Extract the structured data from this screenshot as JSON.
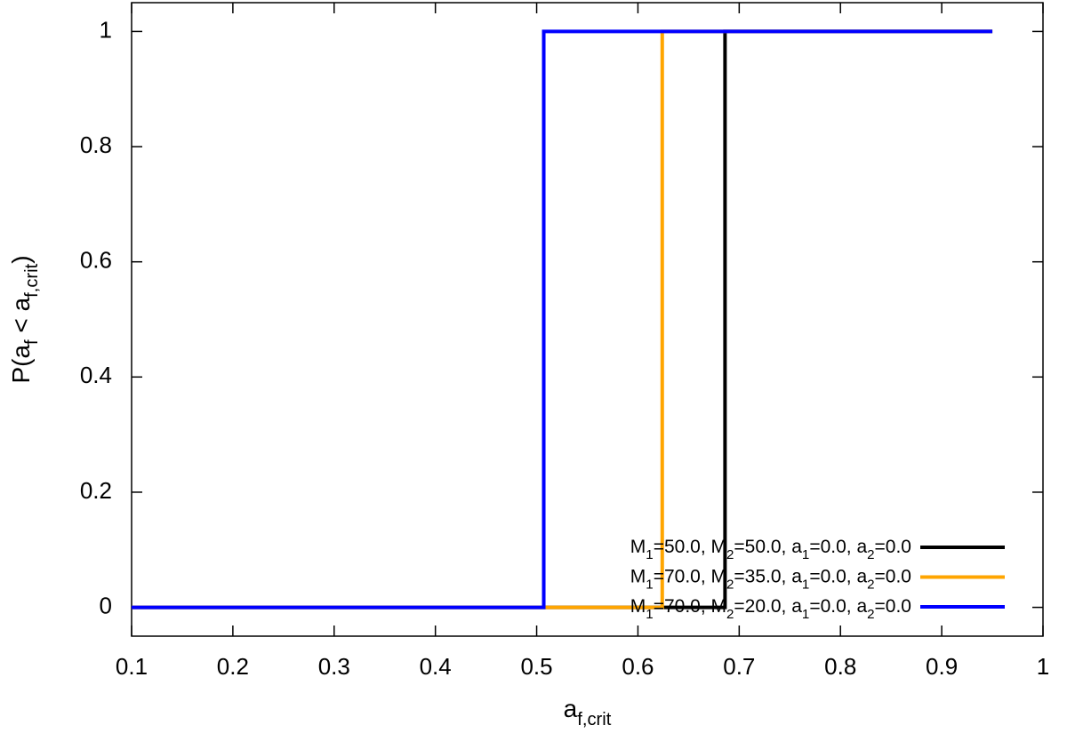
{
  "chart_data": {
    "type": "line",
    "step": true,
    "xlabel": [
      {
        "text": "a"
      },
      {
        "text": "f,crit",
        "sub": true
      }
    ],
    "ylabel": [
      {
        "text": "P(a"
      },
      {
        "text": "f",
        "sub": true
      },
      {
        "text": " < a"
      },
      {
        "text": "f,crit",
        "sub": true
      },
      {
        "text": ")"
      }
    ],
    "xlim": [
      0.1,
      1
    ],
    "ylim": [
      -0.05,
      1.05
    ],
    "xticks": [
      0.1,
      0.2,
      0.3,
      0.4,
      0.5,
      0.6,
      0.7,
      0.8,
      0.9,
      1
    ],
    "yticks": [
      0,
      0.2,
      0.4,
      0.6,
      0.8,
      1
    ],
    "legend": "lower right",
    "series": [
      {
        "name": [
          {
            "text": "M"
          },
          {
            "text": "1",
            "sub": true
          },
          {
            "text": "=50.0, M"
          },
          {
            "text": "2",
            "sub": true
          },
          {
            "text": "=50.0, a"
          },
          {
            "text": "1",
            "sub": true
          },
          {
            "text": "=0.0, a"
          },
          {
            "text": "2",
            "sub": true
          },
          {
            "text": "=0.0"
          }
        ],
        "color": "#000000",
        "x": [
          0.1,
          0.686,
          0.686,
          0.95
        ],
        "values": [
          0,
          0,
          1,
          1
        ]
      },
      {
        "name": [
          {
            "text": "M"
          },
          {
            "text": "1",
            "sub": true
          },
          {
            "text": "=70.0, M"
          },
          {
            "text": "2",
            "sub": true
          },
          {
            "text": "=35.0, a"
          },
          {
            "text": "1",
            "sub": true
          },
          {
            "text": "=0.0, a"
          },
          {
            "text": "2",
            "sub": true
          },
          {
            "text": "=0.0"
          }
        ],
        "color": "#ffa500",
        "x": [
          0.1,
          0.624,
          0.624,
          0.95
        ],
        "values": [
          0,
          0,
          1,
          1
        ]
      },
      {
        "name": [
          {
            "text": "M"
          },
          {
            "text": "1",
            "sub": true
          },
          {
            "text": "=70.0, M"
          },
          {
            "text": "2",
            "sub": true
          },
          {
            "text": "=20.0, a"
          },
          {
            "text": "1",
            "sub": true
          },
          {
            "text": "=0.0, a"
          },
          {
            "text": "2",
            "sub": true
          },
          {
            "text": "=0.0"
          }
        ],
        "color": "#0000ff",
        "x": [
          0.1,
          0.507,
          0.507,
          0.95
        ],
        "values": [
          0,
          0,
          1,
          1
        ]
      }
    ]
  }
}
